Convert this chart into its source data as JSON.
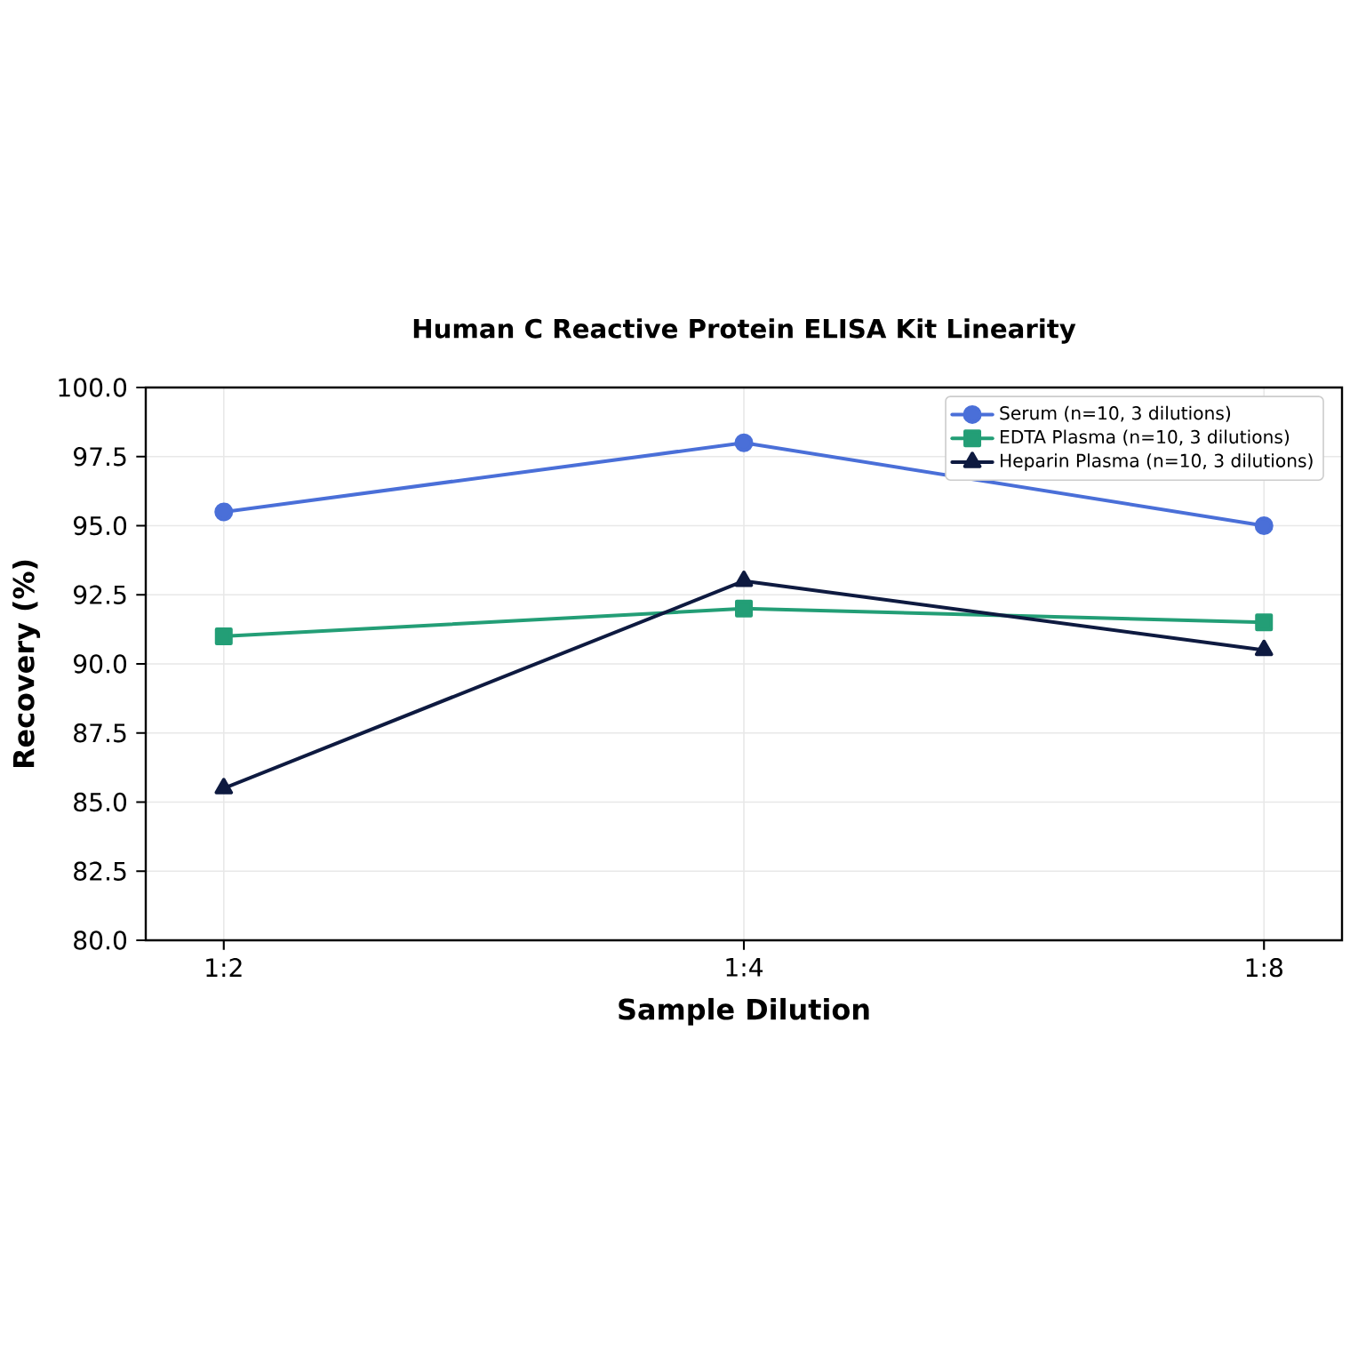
{
  "chart_data": {
    "type": "line",
    "title": "Human C Reactive Protein ELISA Kit Linearity",
    "xlabel": "Sample Dilution",
    "ylabel": "Recovery (%)",
    "categories": [
      "1:2",
      "1:4",
      "1:8"
    ],
    "series": [
      {
        "name": "Serum (n=10, 3 dilutions)",
        "color": "#4a6fd8",
        "marker": "circle",
        "values": [
          95.5,
          98.0,
          95.0
        ]
      },
      {
        "name": "EDTA Plasma (n=10, 3 dilutions)",
        "color": "#239e76",
        "marker": "square",
        "values": [
          91.0,
          92.0,
          91.5
        ]
      },
      {
        "name": "Heparin Plasma (n=10, 3 dilutions)",
        "color": "#0e1a40",
        "marker": "triangle",
        "values": [
          85.5,
          93.0,
          90.5
        ]
      }
    ],
    "ylim": [
      80,
      100
    ],
    "yticks": [
      {
        "value": 80,
        "label": "80.0"
      },
      82.5,
      {
        "value": 85,
        "label": "85.0"
      },
      87.5,
      {
        "value": 90,
        "label": "90.0"
      },
      92.5,
      {
        "value": 95,
        "label": "95.0"
      },
      97.5,
      {
        "value": 100,
        "label": "100.0"
      }
    ],
    "grid": true,
    "legend": "top right",
    "line_style": "solid"
  }
}
